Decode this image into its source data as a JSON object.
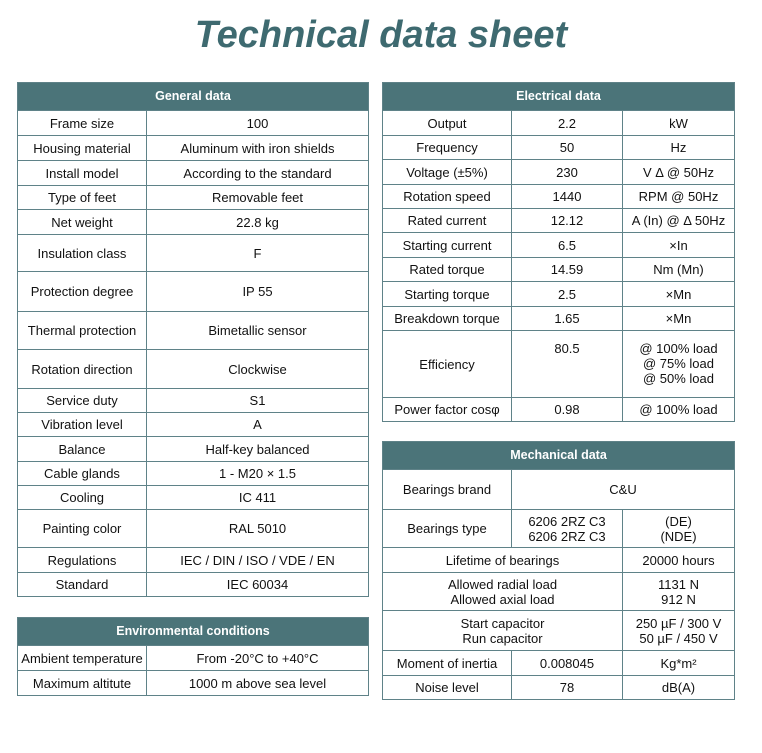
{
  "title": "Technical data sheet",
  "general": {
    "header": "General data",
    "rows": [
      [
        "Frame size",
        "100"
      ],
      [
        "Housing material",
        "Aluminum with iron shields"
      ],
      [
        "Install model",
        "According to the standard"
      ],
      [
        "Type of feet",
        "Removable feet"
      ],
      [
        "Net weight",
        "22.8 kg"
      ],
      [
        "Insulation class",
        "F"
      ],
      [
        "Protection degree",
        "IP 55"
      ],
      [
        "Thermal protection",
        "Bimetallic sensor"
      ],
      [
        "Rotation direction",
        "Clockwise"
      ],
      [
        "Service duty",
        "S1"
      ],
      [
        "Vibration level",
        "A"
      ],
      [
        "Balance",
        "Half-key balanced"
      ],
      [
        "Cable glands",
        "1 - M20 × 1.5"
      ],
      [
        "Cooling",
        "IC 411"
      ],
      [
        "Painting color",
        "RAL 5010"
      ],
      [
        "Regulations",
        "IEC / DIN / ISO / VDE / EN"
      ],
      [
        "Standard",
        "IEC 60034"
      ]
    ]
  },
  "environmental": {
    "header": "Environmental conditions",
    "rows": [
      [
        "Ambient temperature",
        "From -20°C to +40°C"
      ],
      [
        "Maximum altitute",
        "1000 m above sea level"
      ]
    ]
  },
  "electrical": {
    "header": "Electrical data",
    "rows": [
      [
        "Output",
        "2.2",
        "kW"
      ],
      [
        "Frequency",
        "50",
        "Hz"
      ],
      [
        "Voltage (±5%)",
        "230",
        "V Δ @ 50Hz"
      ],
      [
        "Rotation speed",
        "1440",
        "RPM @ 50Hz"
      ],
      [
        "Rated current",
        "12.12",
        "A (In) @ Δ 50Hz"
      ],
      [
        "Starting current",
        "6.5",
        "×In"
      ],
      [
        "Rated torque",
        "14.59",
        "Nm (Mn)"
      ],
      [
        "Starting torque",
        "2.5",
        "×Mn"
      ],
      [
        "Breakdown torque",
        "1.65",
        "×Mn"
      ],
      [
        "Efficiency",
        "80.5",
        "@ 100% load\n@ 75% load\n@ 50% load"
      ],
      [
        "Power factor cosφ",
        "0.98",
        "@ 100% load"
      ]
    ]
  },
  "mechanical": {
    "header": "Mechanical data",
    "bearings_brand": [
      "Bearings brand",
      "C&U"
    ],
    "bearings_type": [
      "Bearings type",
      "6206 2RZ C3\n6206 2RZ C3",
      "(DE)\n(NDE)"
    ],
    "lifetime": [
      "Lifetime of bearings",
      "20000 hours"
    ],
    "loads": [
      "Allowed radial load\nAllowed axial load",
      "1131 N\n912 N"
    ],
    "capacitors": [
      "Start capacitor\nRun capacitor",
      "250 µF / 300 V\n50 µF / 450 V"
    ],
    "inertia": [
      "Moment of inertia",
      "0.008045",
      "Kg*m²"
    ],
    "noise": [
      "Noise level",
      "78",
      "dB(A)"
    ]
  }
}
